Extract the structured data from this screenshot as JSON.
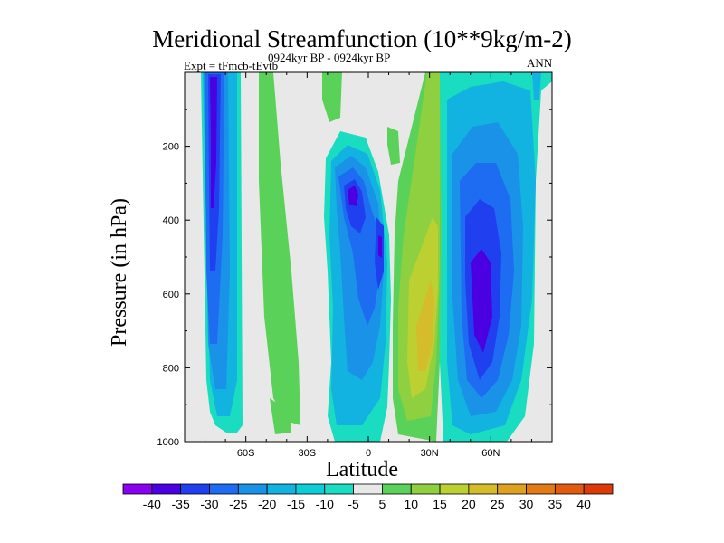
{
  "chart_data": {
    "type": "contour",
    "title": "Meridional Streamfunction (10**9kg/m-2)",
    "subtitle": "0924kyr BP - 0924kyr BP",
    "expt_label": "Expt = tFmcb-tEvtb",
    "season": "ANN",
    "xlabel": "Latitude",
    "ylabel": "Pressure (in hPa)",
    "xlim": [
      -90,
      90
    ],
    "ylim": [
      1000,
      0
    ],
    "x_ticks": [
      {
        "value": -60,
        "label": "60S"
      },
      {
        "value": -30,
        "label": "30S"
      },
      {
        "value": 0,
        "label": "0"
      },
      {
        "value": 30,
        "label": "30N"
      },
      {
        "value": 60,
        "label": "60N"
      }
    ],
    "y_ticks": [
      {
        "value": 200,
        "label": "200"
      },
      {
        "value": 400,
        "label": "400"
      },
      {
        "value": 600,
        "label": "600"
      },
      {
        "value": 800,
        "label": "800"
      },
      {
        "value": 1000,
        "label": "1000"
      }
    ],
    "colorbar": {
      "labels": [
        "-40",
        "-35",
        "-30",
        "-25",
        "-20",
        "-15",
        "-10",
        "-5",
        "5",
        "10",
        "15",
        "20",
        "25",
        "30",
        "35",
        "40"
      ],
      "colors": [
        "#8a00f0",
        "#4a00e0",
        "#2040f0",
        "#1e6cf2",
        "#1a92e8",
        "#12b3e0",
        "#0dcdd6",
        "#19dcc0",
        "#e8e8e8",
        "#5ad25a",
        "#8ed040",
        "#bcd032",
        "#d4bc2a",
        "#e0a020",
        "#e27a16",
        "#e25a10",
        "#dd3a0a"
      ]
    },
    "contour_bands": [
      {
        "region": "SH high-lat negative cell",
        "lat_range": [
          -80,
          -62
        ],
        "p_range": [
          0,
          960
        ],
        "min_value": -35
      },
      {
        "region": "SH mid-lat positive band",
        "lat_range": [
          -52,
          -40
        ],
        "p_range": [
          0,
          880
        ],
        "max_value": 10
      },
      {
        "region": "Tropical negative cell",
        "lat_range": [
          -18,
          12
        ],
        "p_range": [
          180,
          1000
        ],
        "min_value": -30
      },
      {
        "region": "Tropical positive cell",
        "lat_range": [
          10,
          34
        ],
        "p_range": [
          0,
          990
        ],
        "max_value": 20
      },
      {
        "region": "NH mid-lat negative cell",
        "lat_range": [
          32,
          80
        ],
        "p_range": [
          0,
          990
        ],
        "min_value": -30
      }
    ]
  }
}
